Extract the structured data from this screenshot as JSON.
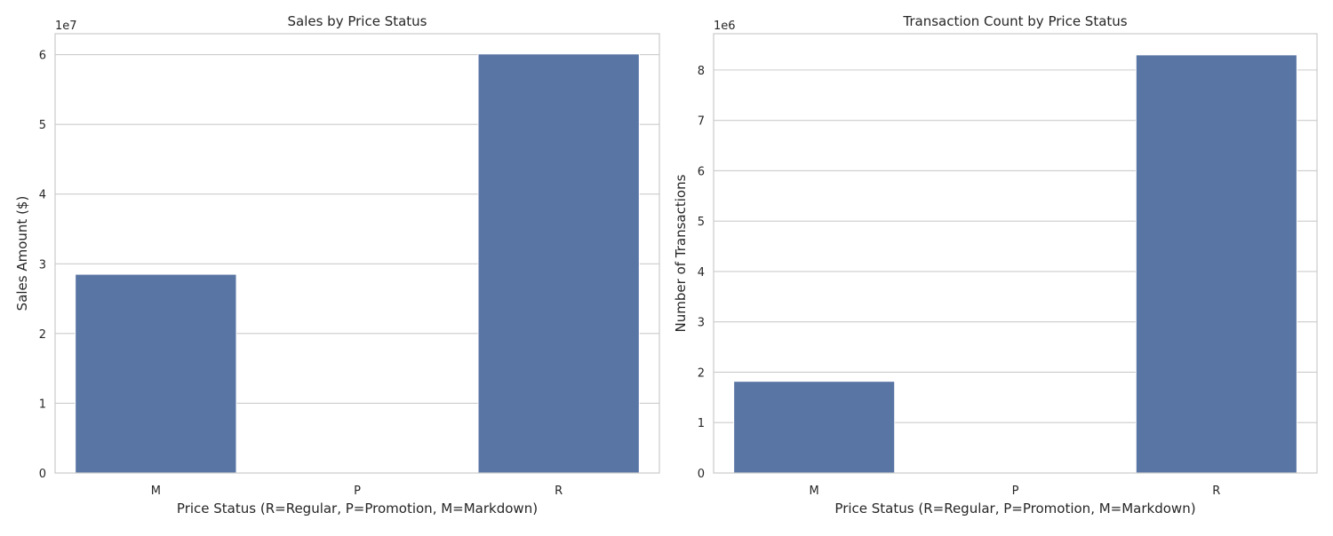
{
  "chart_data": [
    {
      "type": "bar",
      "title": "Sales by Price Status",
      "xlabel": "Price Status (R=Regular, P=Promotion, M=Markdown)",
      "ylabel": "Sales Amount ($)",
      "offset_label": "1e7",
      "categories": [
        "M",
        "P",
        "R"
      ],
      "values": [
        28500000,
        0,
        60100000
      ],
      "ylim": [
        0,
        63000000
      ],
      "ytick_values": [
        0,
        10000000,
        20000000,
        30000000,
        40000000,
        50000000,
        60000000
      ],
      "ytick_labels": [
        "0",
        "1",
        "2",
        "3",
        "4",
        "5",
        "6"
      ],
      "grid": true,
      "bar_color": "#5975a4"
    },
    {
      "type": "bar",
      "title": "Transaction Count by Price Status",
      "xlabel": "Price Status (R=Regular, P=Promotion, M=Markdown)",
      "ylabel": "Number of Transactions",
      "offset_label": "1e6",
      "categories": [
        "M",
        "P",
        "R"
      ],
      "values": [
        1820000,
        0,
        8300000
      ],
      "ylim": [
        0,
        8720000
      ],
      "ytick_values": [
        0,
        1000000,
        2000000,
        3000000,
        4000000,
        5000000,
        6000000,
        7000000,
        8000000
      ],
      "ytick_labels": [
        "0",
        "1",
        "2",
        "3",
        "4",
        "5",
        "6",
        "7",
        "8"
      ],
      "grid": true,
      "bar_color": "#5975a4"
    }
  ]
}
